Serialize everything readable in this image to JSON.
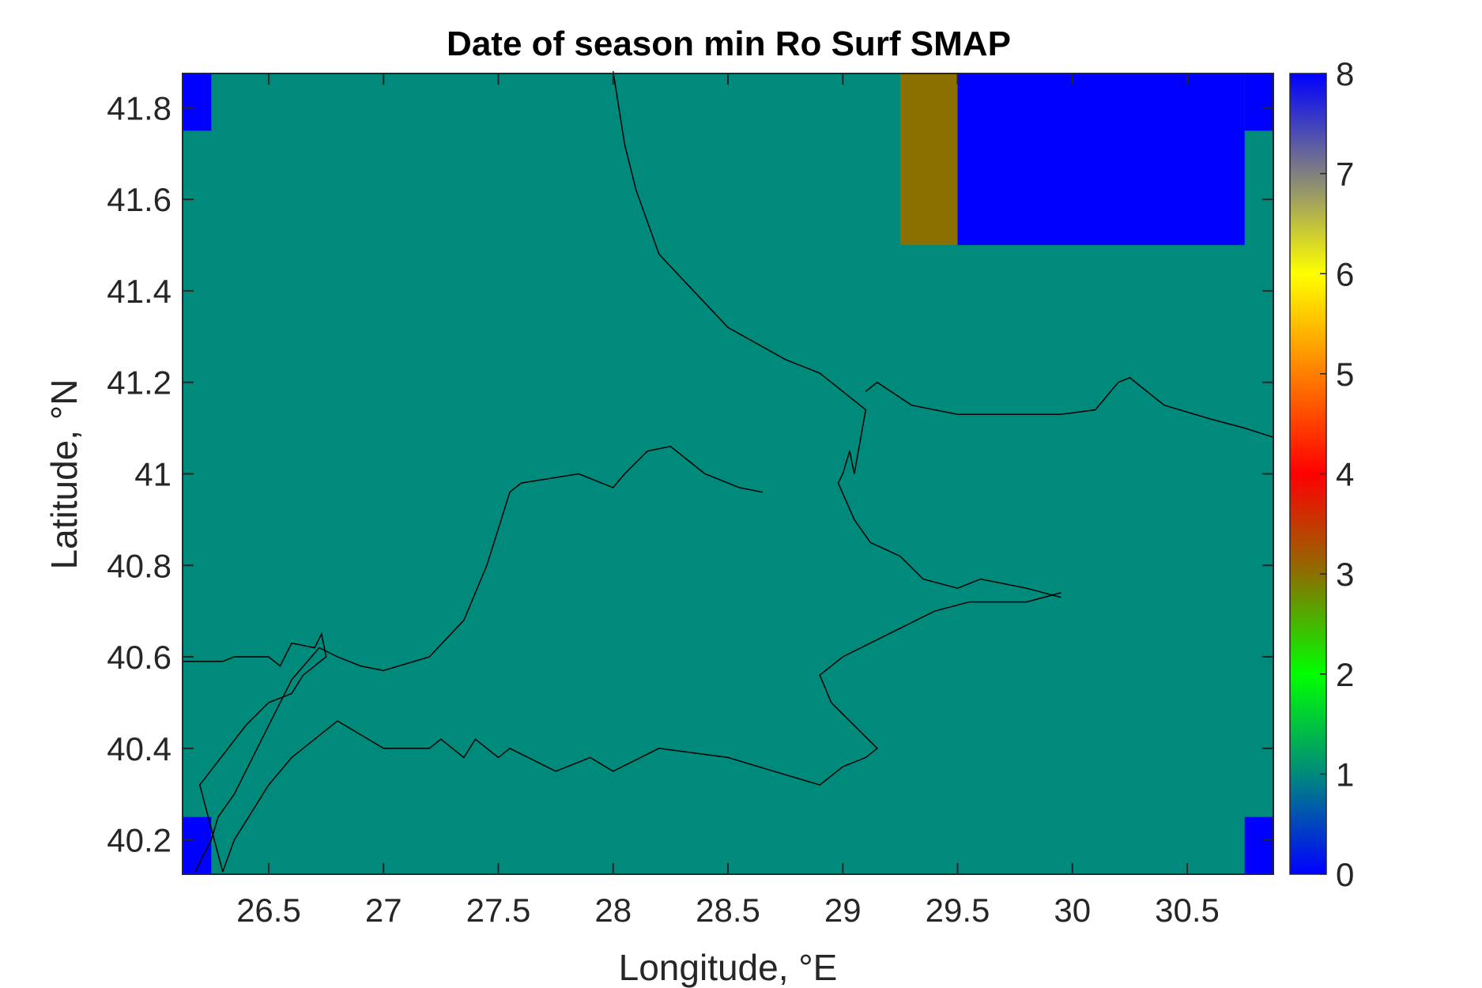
{
  "chart_data": {
    "type": "heatmap",
    "title": "Date of season min Ro Surf SMAP",
    "xlabel": "Longitude, °E",
    "ylabel": "Latitude, °N",
    "xlim": [
      26.125,
      30.875
    ],
    "ylim": [
      40.125,
      41.875
    ],
    "xticks": [
      26.5,
      27,
      27.5,
      28,
      28.5,
      29,
      29.5,
      30,
      30.5
    ],
    "xtick_labels": [
      "26.5",
      "27",
      "27.5",
      "28",
      "28.5",
      "29",
      "29.5",
      "30",
      "30.5"
    ],
    "yticks": [
      40.2,
      40.4,
      40.6,
      40.8,
      41,
      41.2,
      41.4,
      41.6,
      41.8
    ],
    "ytick_labels": [
      "40.2",
      "40.4",
      "40.6",
      "40.8",
      "41",
      "41.2",
      "41.4",
      "41.6",
      "41.8"
    ],
    "colorbar": {
      "range": [
        0,
        8
      ],
      "ticks": [
        0,
        1,
        2,
        3,
        4,
        5,
        6,
        7,
        8
      ],
      "tick_labels": [
        "0",
        "1",
        "2",
        "3",
        "4",
        "5",
        "6",
        "7",
        "8"
      ],
      "colormap": [
        "#0000ff",
        "#008a7c",
        "#00ff00",
        "#8b7000",
        "#ff0000",
        "#ff7f00",
        "#ffff00",
        "#808080",
        "#0000ff"
      ]
    },
    "background_value": 1,
    "cells": [
      {
        "lon": [
          26.125,
          26.25
        ],
        "lat": [
          41.75,
          41.875
        ],
        "value": 0,
        "color": "#0000ff"
      },
      {
        "lon": [
          26.125,
          26.25
        ],
        "lat": [
          40.125,
          40.25
        ],
        "value": 0,
        "color": "#0000ff"
      },
      {
        "lon": [
          30.75,
          30.875
        ],
        "lat": [
          40.125,
          40.25
        ],
        "value": 0,
        "color": "#0000ff"
      },
      {
        "lon": [
          29.25,
          29.5
        ],
        "lat": [
          41.5,
          41.875
        ],
        "value": 3,
        "color": "#8b7000"
      },
      {
        "lon": [
          29.5,
          30.75
        ],
        "lat": [
          41.5,
          41.875
        ],
        "value": 8,
        "color": "#0000ff"
      },
      {
        "lon": [
          30.75,
          30.875
        ],
        "lat": [
          41.75,
          41.875
        ],
        "value": 8,
        "color": "#0000ff"
      }
    ],
    "colors": {
      "background": "#008a7c",
      "coastline": "#000000",
      "axes": "#262626"
    },
    "grid": false,
    "coastlines": [
      [
        [
          28.0,
          41.88
        ],
        [
          28.05,
          41.72
        ],
        [
          28.1,
          41.62
        ],
        [
          28.2,
          41.48
        ],
        [
          28.5,
          41.32
        ],
        [
          28.75,
          41.25
        ],
        [
          28.9,
          41.22
        ],
        [
          29.0,
          41.18
        ],
        [
          29.1,
          41.14
        ],
        [
          29.05,
          41.0
        ],
        [
          29.03,
          41.05
        ],
        [
          29.0,
          41.0
        ],
        [
          28.98,
          40.98
        ],
        [
          29.05,
          40.9
        ],
        [
          29.12,
          40.85
        ],
        [
          29.25,
          40.82
        ],
        [
          29.35,
          40.77
        ],
        [
          29.5,
          40.75
        ],
        [
          29.6,
          40.77
        ],
        [
          29.8,
          40.75
        ],
        [
          29.95,
          40.73
        ]
      ],
      [
        [
          29.1,
          41.18
        ],
        [
          29.15,
          41.2
        ],
        [
          29.3,
          41.15
        ],
        [
          29.5,
          41.13
        ],
        [
          29.8,
          41.13
        ],
        [
          29.95,
          41.13
        ],
        [
          30.1,
          41.14
        ],
        [
          30.2,
          41.2
        ],
        [
          30.25,
          41.21
        ],
        [
          30.4,
          41.15
        ],
        [
          30.6,
          41.12
        ],
        [
          30.75,
          41.1
        ],
        [
          30.875,
          41.08
        ]
      ],
      [
        [
          26.125,
          40.59
        ],
        [
          26.3,
          40.59
        ],
        [
          26.35,
          40.6
        ],
        [
          26.45,
          40.6
        ],
        [
          26.5,
          40.6
        ],
        [
          26.55,
          40.58
        ],
        [
          26.6,
          40.63
        ],
        [
          26.7,
          40.62
        ],
        [
          26.73,
          40.65
        ],
        [
          26.75,
          40.6
        ],
        [
          26.7,
          40.58
        ],
        [
          26.65,
          40.56
        ],
        [
          26.6,
          40.52
        ],
        [
          26.5,
          40.5
        ],
        [
          26.4,
          40.45
        ],
        [
          26.2,
          40.32
        ],
        [
          26.3,
          40.13
        ]
      ],
      [
        [
          26.18,
          40.13
        ],
        [
          26.25,
          40.2
        ],
        [
          26.28,
          40.25
        ],
        [
          26.35,
          40.3
        ],
        [
          26.45,
          40.4
        ],
        [
          26.5,
          40.45
        ],
        [
          26.55,
          40.5
        ],
        [
          26.6,
          40.55
        ],
        [
          26.72,
          40.62
        ],
        [
          26.8,
          40.6
        ],
        [
          26.9,
          40.58
        ],
        [
          27.0,
          40.57
        ],
        [
          27.2,
          40.6
        ],
        [
          27.35,
          40.68
        ],
        [
          27.45,
          40.8
        ],
        [
          27.55,
          40.96
        ],
        [
          27.6,
          40.98
        ],
        [
          27.85,
          41.0
        ],
        [
          28.0,
          40.97
        ],
        [
          28.05,
          41.0
        ],
        [
          28.15,
          41.05
        ],
        [
          28.25,
          41.06
        ],
        [
          28.4,
          41.0
        ],
        [
          28.55,
          40.97
        ],
        [
          28.65,
          40.96
        ]
      ],
      [
        [
          26.3,
          40.13
        ],
        [
          26.35,
          40.2
        ],
        [
          26.45,
          40.28
        ],
        [
          26.5,
          40.32
        ],
        [
          26.6,
          40.38
        ],
        [
          26.7,
          40.42
        ],
        [
          26.8,
          40.46
        ],
        [
          27.0,
          40.4
        ],
        [
          27.2,
          40.4
        ],
        [
          27.25,
          40.42
        ],
        [
          27.35,
          40.38
        ],
        [
          27.4,
          40.42
        ],
        [
          27.5,
          40.38
        ],
        [
          27.55,
          40.4
        ],
        [
          27.75,
          40.35
        ],
        [
          27.9,
          40.38
        ],
        [
          28.0,
          40.35
        ],
        [
          28.2,
          40.4
        ],
        [
          28.5,
          40.38
        ],
        [
          28.7,
          40.35
        ],
        [
          28.9,
          40.32
        ],
        [
          29.0,
          40.36
        ],
        [
          29.1,
          40.38
        ],
        [
          29.15,
          40.4
        ],
        [
          29.05,
          40.45
        ],
        [
          28.95,
          40.5
        ],
        [
          28.9,
          40.56
        ],
        [
          29.0,
          40.6
        ],
        [
          29.2,
          40.65
        ],
        [
          29.4,
          40.7
        ],
        [
          29.55,
          40.72
        ],
        [
          29.8,
          40.72
        ],
        [
          29.95,
          40.74
        ]
      ]
    ]
  }
}
